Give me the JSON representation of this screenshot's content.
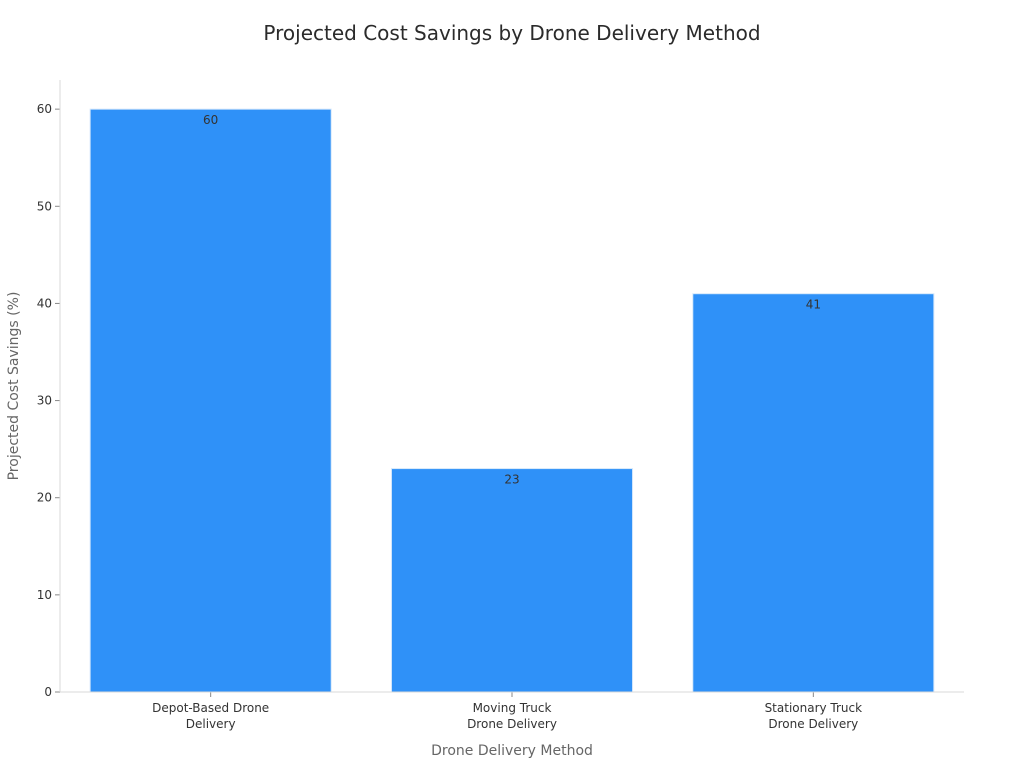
{
  "chart_data": {
    "type": "bar",
    "title": "Projected Cost Savings by Drone Delivery Method",
    "xlabel": "Drone Delivery Method",
    "ylabel": "Projected Cost Savings (%)",
    "categories": [
      [
        "Depot-Based Drone",
        "Delivery"
      ],
      [
        "Moving Truck",
        "Drone Delivery"
      ],
      [
        "Stationary Truck",
        "Drone Delivery"
      ]
    ],
    "values": [
      60,
      23,
      41
    ],
    "data_labels": [
      "60",
      "23",
      "41"
    ],
    "ylim": [
      0,
      63
    ],
    "yticks": [
      0,
      10,
      20,
      30,
      40,
      50,
      60
    ],
    "grid": false,
    "legend": "none",
    "colors": {
      "bar": "#2f91f8",
      "bar_edge": "#d6e8fb"
    }
  }
}
